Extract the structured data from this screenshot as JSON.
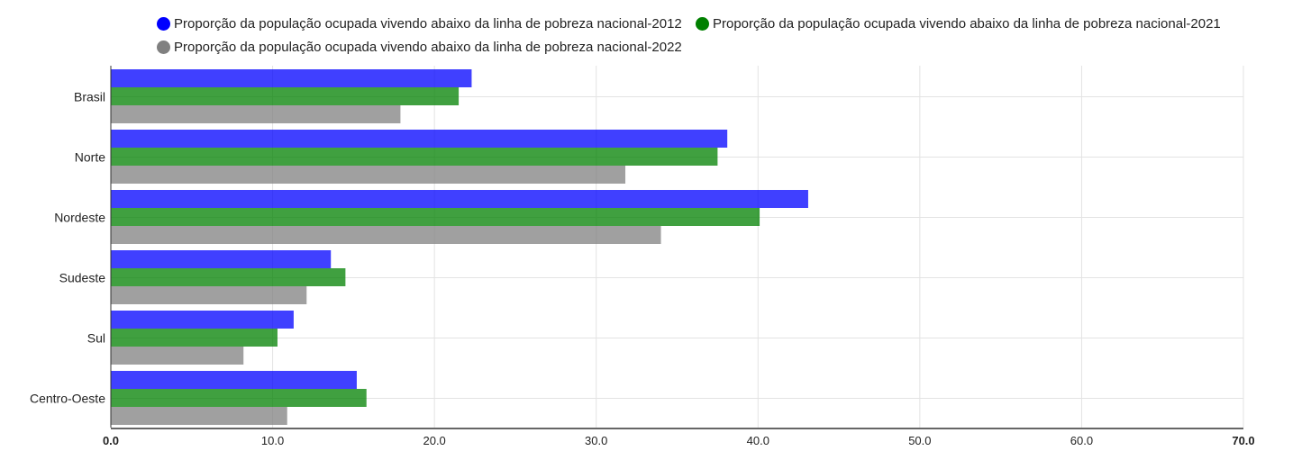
{
  "chart_data": {
    "type": "bar",
    "orientation": "horizontal",
    "categories": [
      "Brasil",
      "Norte",
      "Nordeste",
      "Sudeste",
      "Sul",
      "Centro-Oeste"
    ],
    "series": [
      {
        "name": "Proporção da população ocupada vivendo abaixo da linha de pobreza nacional-2012",
        "color": "#0000ff",
        "values": [
          22.3,
          38.1,
          43.1,
          13.6,
          11.3,
          15.2
        ]
      },
      {
        "name": "Proporção da população ocupada vivendo abaixo da linha de pobreza nacional-2021",
        "color": "#008000",
        "values": [
          21.5,
          37.5,
          40.1,
          14.5,
          10.3,
          15.8
        ]
      },
      {
        "name": "Proporção da população ocupada vivendo abaixo da linha de pobreza nacional-2022",
        "color": "#808080",
        "values": [
          17.9,
          31.8,
          34.0,
          12.1,
          8.2,
          10.9
        ]
      }
    ],
    "x_ticks": [
      "0.0",
      "10.0",
      "20.0",
      "30.0",
      "40.0",
      "50.0",
      "60.0",
      "70.0"
    ],
    "xlim": [
      0,
      70
    ],
    "grid": true,
    "legend_position": "top"
  }
}
